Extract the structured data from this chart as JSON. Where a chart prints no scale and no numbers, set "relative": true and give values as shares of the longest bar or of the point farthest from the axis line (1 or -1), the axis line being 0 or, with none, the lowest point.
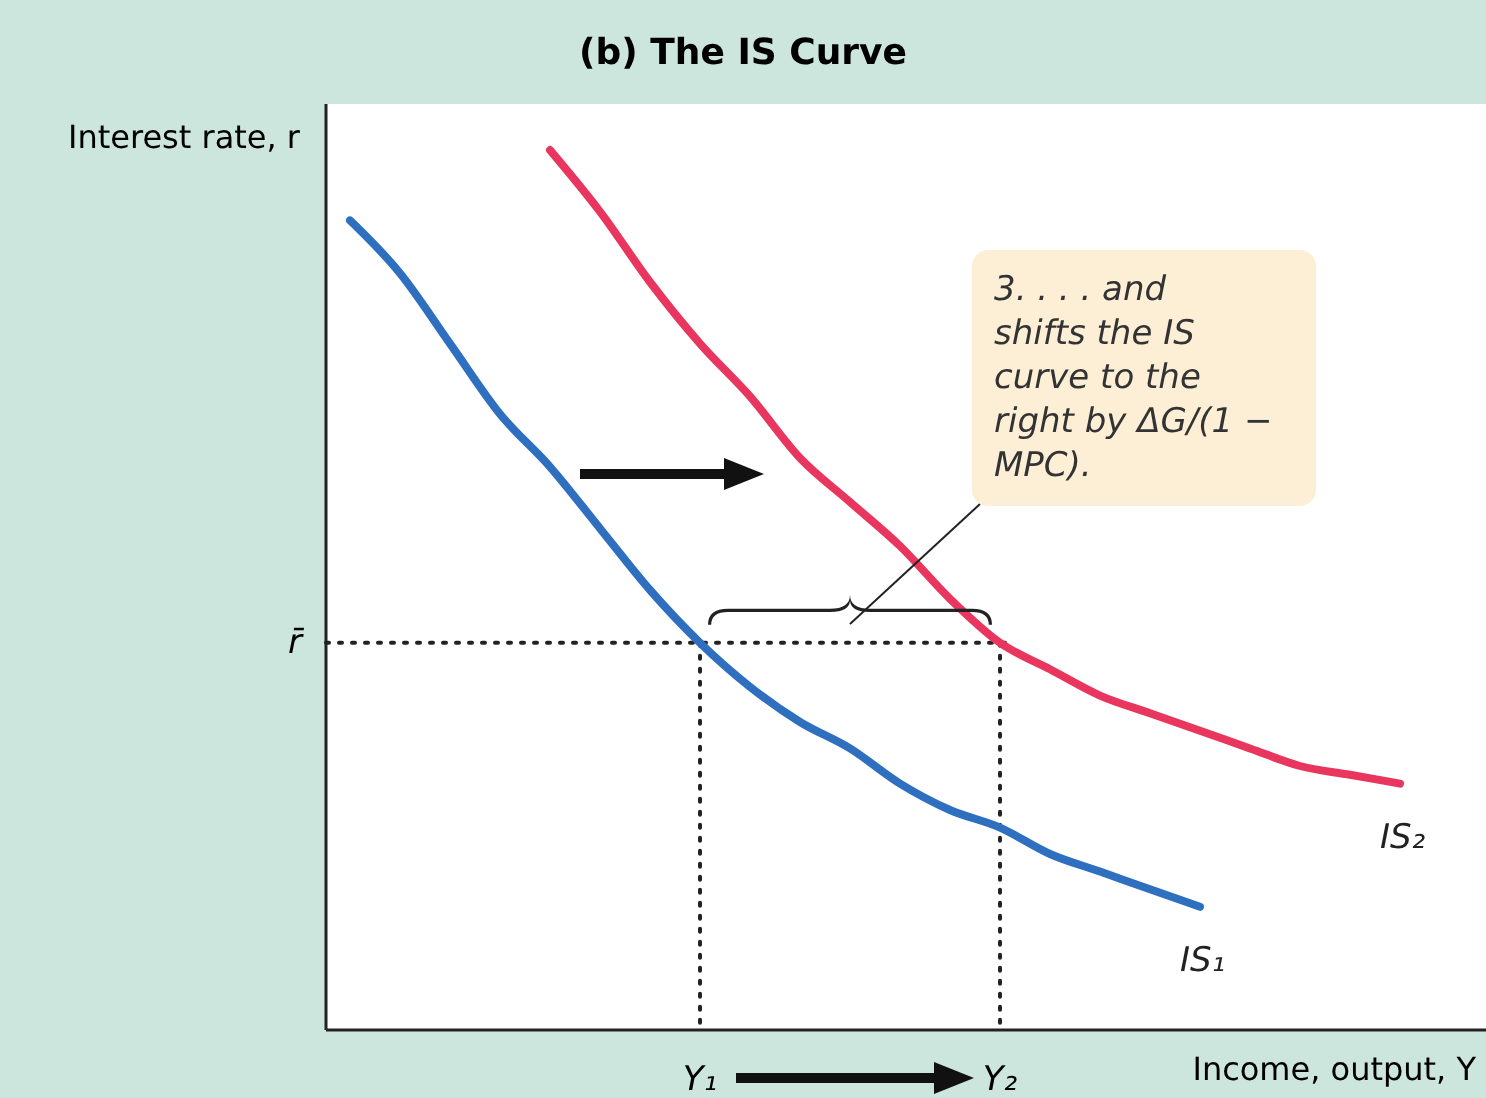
{
  "chart_data": {
    "type": "line",
    "relative": true,
    "title": "(b) The IS Curve",
    "xlabel": "Income, output, Y",
    "ylabel": "Interest rate, r",
    "categories": [
      null,
      null,
      null,
      null,
      null,
      null,
      null,
      "Y₁",
      null,
      null,
      null,
      null,
      null,
      "Y₂",
      null,
      null,
      null,
      null,
      null,
      null,
      null,
      null
    ],
    "series": [
      {
        "name": "IS₁",
        "color": "#2f6fbf",
        "values": [
          0.92,
          0.86,
          0.78,
          0.7,
          0.64,
          0.57,
          0.5,
          0.44,
          0.39,
          0.35,
          0.32,
          0.28,
          0.25,
          0.23,
          0.2,
          0.18,
          0.16,
          0.14,
          null,
          null,
          null,
          null
        ]
      },
      {
        "name": "IS₂",
        "color": "#e8365e",
        "values": [
          null,
          null,
          null,
          null,
          1.0,
          0.93,
          0.85,
          0.78,
          0.72,
          0.65,
          0.6,
          0.55,
          0.49,
          0.44,
          0.41,
          0.38,
          0.36,
          0.34,
          0.32,
          0.3,
          0.29,
          0.28
        ]
      }
    ],
    "ref_lines": [
      {
        "axis": "y",
        "value": 0.44,
        "label": "r̄",
        "line_style": "dotted"
      },
      {
        "axis": "x",
        "value": "Y₁",
        "line_style": "dotted"
      },
      {
        "axis": "x",
        "value": "Y₂",
        "line_style": "dotted"
      }
    ],
    "annotations": [
      "3. . . . and shifts the IS curve to the right by ΔG/(1 − MPC)."
    ],
    "line_style": "solid"
  }
}
